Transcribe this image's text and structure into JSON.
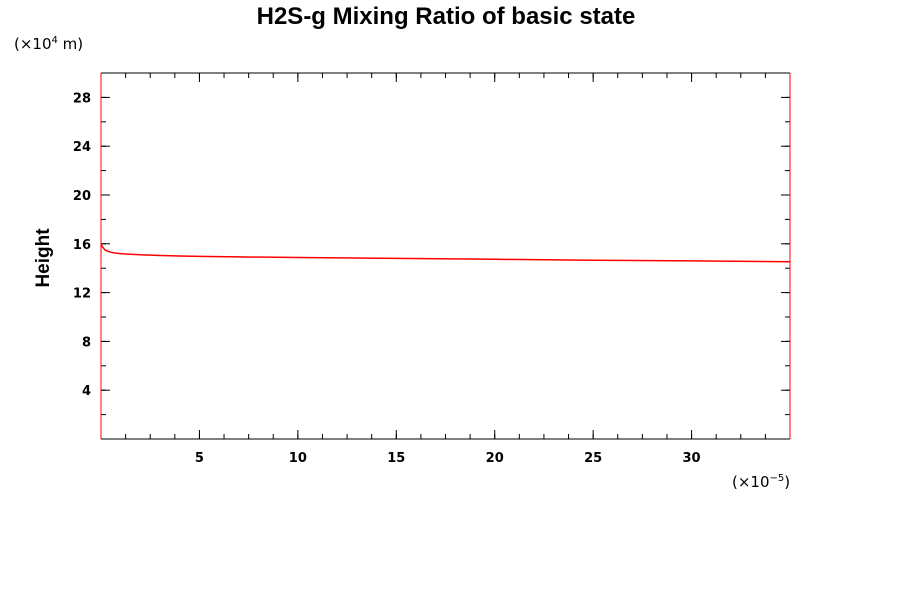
{
  "chart_data": {
    "type": "line",
    "title": "H2S-g Mixing Ratio of basic state",
    "xlabel": "",
    "ylabel": "Height",
    "x_scale_note": {
      "prefix": "(×10",
      "exponent": "−5",
      "suffix": ")"
    },
    "y_scale_note": {
      "prefix": "(×10",
      "exponent": "4",
      "suffix": " m)"
    },
    "xlim": [
      0,
      35
    ],
    "ylim": [
      0,
      30
    ],
    "x_major_ticks": [
      5,
      10,
      15,
      20,
      25,
      30
    ],
    "x_minor_step": 1.25,
    "y_major_ticks": [
      4,
      8,
      12,
      16,
      20,
      24,
      28
    ],
    "y_minor_step": 2,
    "grid": false,
    "line_color": "#ff0000",
    "series": [
      {
        "x": [
          0,
          0.05,
          0.1,
          0.15,
          0.2,
          0.3,
          0.4,
          0.5,
          0.7,
          1.0,
          1.5,
          2.0,
          3.0,
          4.0,
          5.0,
          7.0,
          10.0,
          15.0,
          20.0,
          25.0,
          30.0,
          35.0
        ],
        "y": [
          16.0,
          15.8,
          15.7,
          15.6,
          15.5,
          15.42,
          15.36,
          15.31,
          15.25,
          15.2,
          15.14,
          15.1,
          15.04,
          15.0,
          14.97,
          14.93,
          14.88,
          14.8,
          14.73,
          14.65,
          14.6,
          14.53
        ]
      }
    ]
  }
}
